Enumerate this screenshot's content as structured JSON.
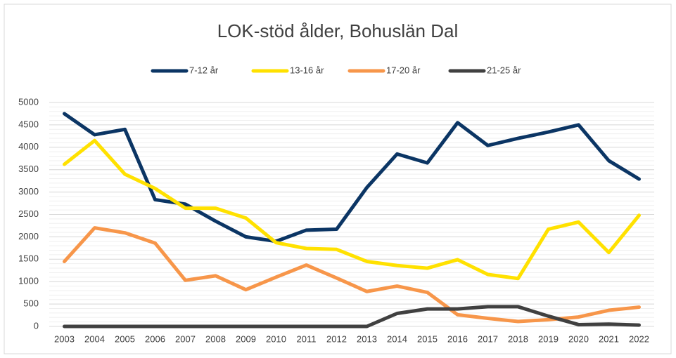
{
  "chart_data": {
    "type": "line",
    "title": "LOK-stöd ålder, Bohuslän Dal",
    "categories": [
      "2003",
      "2004",
      "2005",
      "2006",
      "2007",
      "2008",
      "2009",
      "2010",
      "2011",
      "2012",
      "2013",
      "2014",
      "2015",
      "2016",
      "2017",
      "2018",
      "2019",
      "2020",
      "2021",
      "2022"
    ],
    "series": [
      {
        "name": "7-12 år",
        "color": "#0b3564",
        "values": [
          4750,
          4280,
          4400,
          2830,
          2730,
          2350,
          2000,
          1900,
          2150,
          2170,
          3100,
          3850,
          3650,
          4550,
          4040,
          4200,
          4340,
          4500,
          3700,
          3290
        ]
      },
      {
        "name": "13-16 år",
        "color": "#ffe100",
        "values": [
          3620,
          4150,
          3400,
          3080,
          2640,
          2640,
          2420,
          1870,
          1740,
          1720,
          1450,
          1360,
          1300,
          1490,
          1160,
          1070,
          2170,
          2330,
          1650,
          2480
        ]
      },
      {
        "name": "17-20 år",
        "color": "#f7964a",
        "values": [
          1450,
          2200,
          2090,
          1860,
          1030,
          1130,
          820,
          1100,
          1370,
          1080,
          780,
          900,
          760,
          260,
          180,
          110,
          150,
          210,
          360,
          430
        ]
      },
      {
        "name": "21-25 år",
        "color": "#404040",
        "values": [
          0,
          0,
          0,
          0,
          0,
          0,
          0,
          0,
          0,
          0,
          0,
          290,
          390,
          390,
          440,
          440,
          230,
          40,
          50,
          30
        ]
      }
    ],
    "ylim": [
      0,
      5000
    ],
    "yticks": [
      0,
      500,
      1000,
      1500,
      2000,
      2500,
      3000,
      3500,
      4000,
      4500,
      5000
    ],
    "grid": true,
    "legend": "top"
  }
}
